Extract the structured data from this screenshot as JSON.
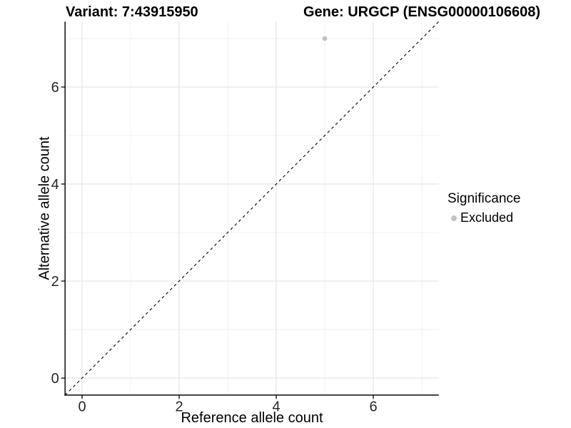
{
  "title": {
    "variant": "Variant: 7:43915950",
    "gene": "Gene: URGCP (ENSG00000106608)"
  },
  "axes": {
    "x_label": "Reference allele count",
    "y_label": "Alternative allele count"
  },
  "legend": {
    "title": "Significance",
    "items": [
      {
        "label": "Excluded",
        "color": "#c2c2c2"
      }
    ]
  },
  "colors": {
    "background": "#ffffff",
    "grid_major": "#e6e6e6",
    "grid_minor": "#f1f1f1",
    "axis_line": "#1a1a1a",
    "tick_text": "#262626",
    "ref_line": "#000000",
    "point": "#c2c2c2"
  },
  "chart_data": {
    "type": "scatter",
    "title": "Variant: 7:43915950    Gene: URGCP (ENSG00000106608)",
    "xlabel": "Reference allele count",
    "ylabel": "Alternative allele count",
    "xlim": [
      -0.35,
      7.35
    ],
    "ylim": [
      -0.35,
      7.35
    ],
    "x_ticks": [
      0,
      2,
      4,
      6
    ],
    "y_ticks": [
      0,
      2,
      4,
      6
    ],
    "x_minor_ticks": [
      1,
      3,
      5,
      7
    ],
    "y_minor_ticks": [
      1,
      3,
      5,
      7
    ],
    "grid": true,
    "legend_position": "right",
    "reference_line": {
      "slope": 1,
      "intercept": 0,
      "style": "dashed",
      "color": "#000000"
    },
    "series": [
      {
        "name": "Excluded",
        "color": "#c2c2c2",
        "points": [
          {
            "x": 5,
            "y": 7
          }
        ]
      }
    ]
  }
}
